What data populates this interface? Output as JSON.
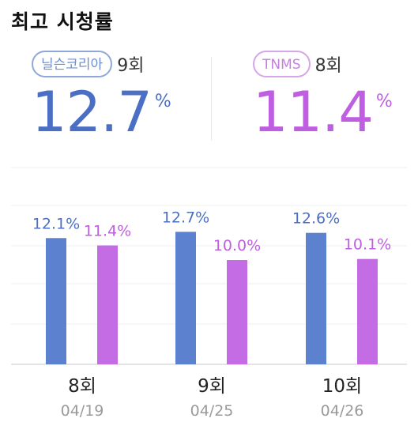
{
  "title": "최고 시청률",
  "stats": [
    {
      "source": "닐슨코리아",
      "episode": "9회",
      "value": "12.7",
      "unit": "%",
      "color": "#4b6fc4"
    },
    {
      "source": "TNMS",
      "episode": "8회",
      "value": "11.4",
      "unit": "%",
      "color": "#bf5ee0"
    }
  ],
  "colors": {
    "nielsen": "#5b81cf",
    "tnms": "#c46ce3",
    "nielsen_text": "#4b6fc4",
    "tnms_text": "#bf5ee0"
  },
  "chart_data": {
    "type": "bar",
    "categories": [
      "8회",
      "9회",
      "10회"
    ],
    "dates": [
      "04/19",
      "04/25",
      "04/26"
    ],
    "series": [
      {
        "values": [
          12.1,
          12.7,
          12.6
        ],
        "labels": [
          "12.1%",
          "12.7%",
          "12.6%"
        ]
      },
      {
        "values": [
          11.4,
          10.0,
          10.1
        ],
        "labels": [
          "11.4%",
          "10.0%",
          "10.1%"
        ]
      }
    ],
    "grid": true
  }
}
